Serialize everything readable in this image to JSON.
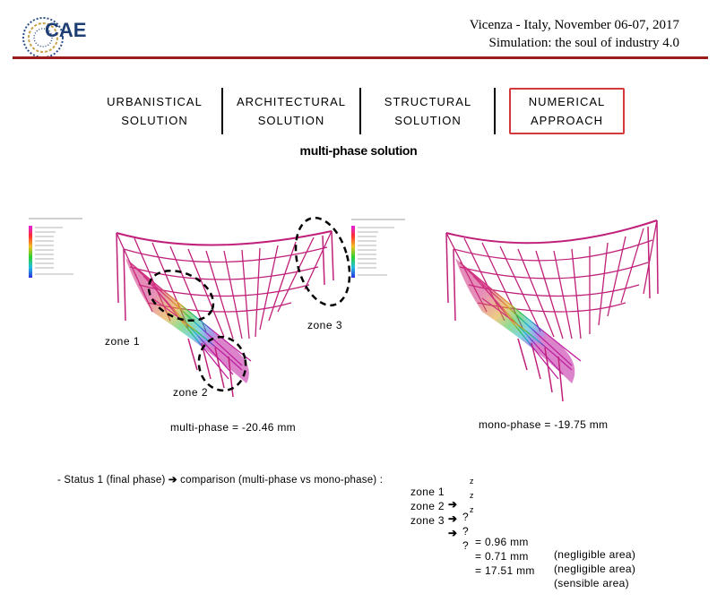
{
  "header": {
    "logo_text": "CAE",
    "event_line": "Vicenza - Italy, November 06-07, 2017",
    "event_subline": "Simulation: the soul of industry 4.0"
  },
  "nav": [
    {
      "line1": "URBANISTICAL",
      "line2": "SOLUTION"
    },
    {
      "line1": "ARCHITECTURAL",
      "line2": "SOLUTION"
    },
    {
      "line1": "STRUCTURAL",
      "line2": "SOLUTION"
    },
    {
      "line1": "NUMERICAL",
      "line2": "APPROACH"
    }
  ],
  "section_title": "multi-phase solution",
  "zones": {
    "zone1": "zone 1",
    "zone2": "zone 2",
    "zone3": "zone 3"
  },
  "captions": {
    "multi": "multi-phase = -20.46 mm",
    "mono": "mono-phase = -19.75 mm"
  },
  "status": {
    "prefix": "- Status 1 (final phase)",
    "arrow": "➔",
    "suffix": "comparison (multi-phase vs mono-phase) :"
  },
  "zone_results": [
    {
      "zone": "zone 1",
      "symbol": "?",
      "sub": "z",
      "value": "= 0.96 mm",
      "note": "(negligible area)"
    },
    {
      "zone": "zone 2",
      "symbol": "?",
      "sub": "z",
      "value": "= 0.71 mm",
      "note": "(negligible area)"
    },
    {
      "zone": "zone 3",
      "symbol": "?",
      "sub": "z",
      "value": "= 17.51 mm",
      "note": "(sensible area)"
    }
  ],
  "colors": {
    "accent_red": "#d23a3a",
    "rule_dark_red": "#9b1b1b",
    "mesh_magenta": "#c0207a"
  }
}
